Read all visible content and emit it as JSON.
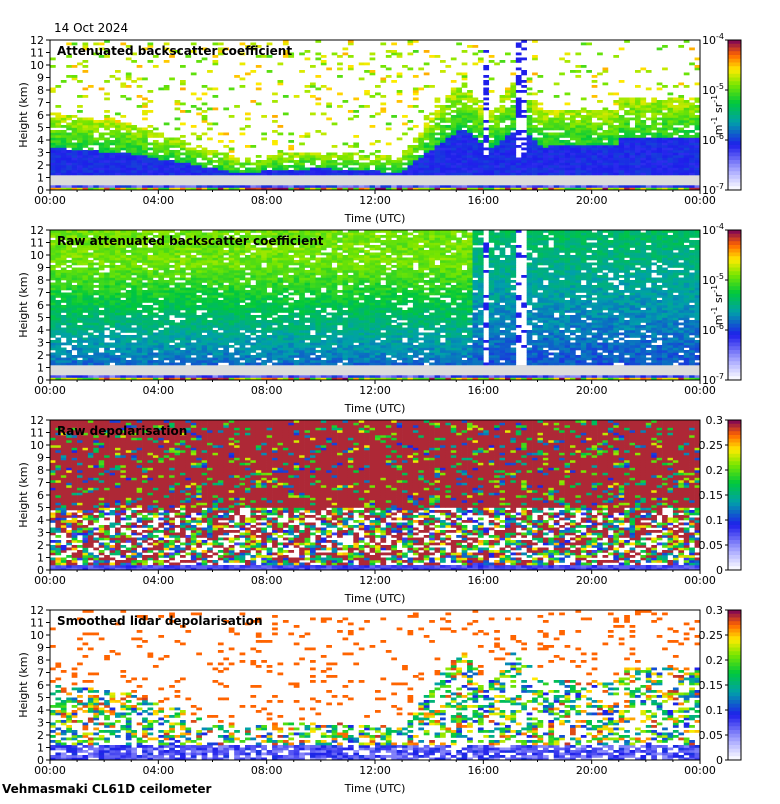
{
  "date_label": "14 Oct 2024",
  "footer": "Vehmasmaki CL61D ceilometer",
  "chart_data": [
    {
      "type": "heatmap",
      "title": "Attenuated backscatter coefficient",
      "xlabel": "Time (UTC)",
      "ylabel": "Height (km)",
      "x_ticks": [
        "00:00",
        "04:00",
        "08:00",
        "12:00",
        "16:00",
        "20:00",
        "00:00"
      ],
      "y_ticks": [
        "0",
        "1",
        "2",
        "3",
        "4",
        "5",
        "6",
        "7",
        "8",
        "9",
        "10",
        "11",
        "12"
      ],
      "ylim": [
        0,
        12
      ],
      "colorbar": {
        "scale": "log",
        "ticks": [
          {
            "base": "10",
            "exp": "-4"
          },
          {
            "base": "10",
            "exp": "-5"
          },
          {
            "base": "10",
            "exp": "-6"
          },
          {
            "base": "10",
            "exp": "-7"
          }
        ],
        "unit": {
          "a": "m",
          "a_exp": "-1",
          "b": "sr",
          "b_exp": "-1"
        }
      },
      "style": "att"
    },
    {
      "type": "heatmap",
      "title": "Raw attenuated backscatter coefficient",
      "xlabel": "Time (UTC)",
      "ylabel": "Height (km)",
      "x_ticks": [
        "00:00",
        "04:00",
        "08:00",
        "12:00",
        "16:00",
        "20:00",
        "00:00"
      ],
      "y_ticks": [
        "0",
        "1",
        "2",
        "3",
        "4",
        "5",
        "6",
        "7",
        "8",
        "9",
        "10",
        "11",
        "12"
      ],
      "ylim": [
        0,
        12
      ],
      "colorbar": {
        "scale": "log",
        "ticks": [
          {
            "base": "10",
            "exp": "-4"
          },
          {
            "base": "10",
            "exp": "-5"
          },
          {
            "base": "10",
            "exp": "-6"
          },
          {
            "base": "10",
            "exp": "-7"
          }
        ],
        "unit": {
          "a": "m",
          "a_exp": "-1",
          "b": "sr",
          "b_exp": "-1"
        }
      },
      "style": "raw"
    },
    {
      "type": "heatmap",
      "title": "Raw depolarisation",
      "xlabel": "Time (UTC)",
      "ylabel": "Height (km)",
      "x_ticks": [
        "00:00",
        "04:00",
        "08:00",
        "12:00",
        "16:00",
        "20:00",
        "00:00"
      ],
      "y_ticks": [
        "0",
        "1",
        "2",
        "3",
        "4",
        "5",
        "6",
        "7",
        "8",
        "9",
        "10",
        "11",
        "12"
      ],
      "ylim": [
        0,
        12
      ],
      "colorbar": {
        "scale": "linear",
        "ticks": [
          "0.3",
          "0.25",
          "0.2",
          "0.15",
          "0.1",
          "0.05",
          "0"
        ]
      },
      "style": "rawdep"
    },
    {
      "type": "heatmap",
      "title": "Smoothed lidar depolarisation",
      "xlabel": "Time (UTC)",
      "ylabel": "Height (km)",
      "x_ticks": [
        "00:00",
        "04:00",
        "08:00",
        "12:00",
        "16:00",
        "20:00",
        "00:00"
      ],
      "y_ticks": [
        "0",
        "1",
        "2",
        "3",
        "4",
        "5",
        "6",
        "7",
        "8",
        "9",
        "10",
        "11",
        "12"
      ],
      "ylim": [
        0,
        12
      ],
      "colorbar": {
        "scale": "linear",
        "ticks": [
          "0.3",
          "0.25",
          "0.2",
          "0.15",
          "0.1",
          "0.05",
          "0"
        ]
      },
      "style": "smdep"
    }
  ]
}
